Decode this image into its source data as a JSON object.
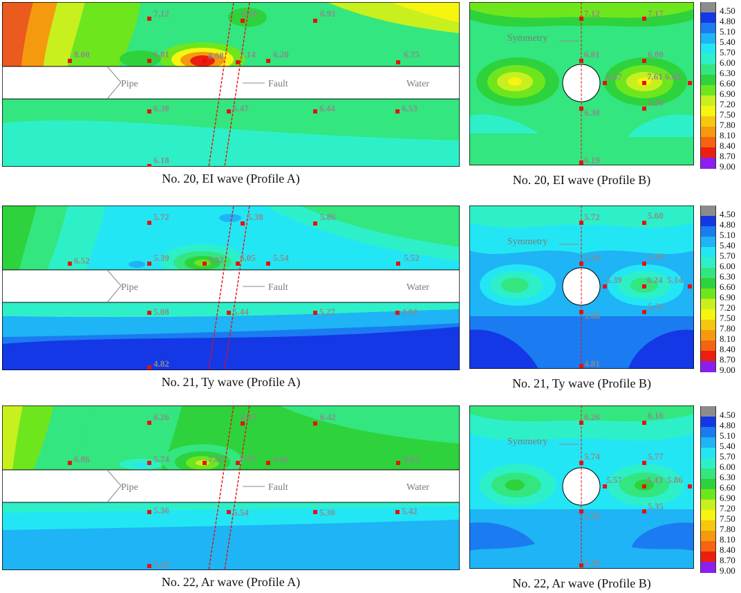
{
  "colorbar": {
    "ticks": [
      "4.50",
      "4.80",
      "5.10",
      "5.40",
      "5.70",
      "6.00",
      "6.30",
      "6.60",
      "6.90",
      "7.20",
      "7.50",
      "7.80",
      "8.10",
      "8.40",
      "8.70",
      "9.00"
    ],
    "colors": [
      "#8c8c8c",
      "#1438e6",
      "#1a7cf0",
      "#1eb4f5",
      "#23e6f5",
      "#2ef0c8",
      "#33e67f",
      "#2ed23c",
      "#6ee61e",
      "#c8f01e",
      "#f5f50f",
      "#f5c80f",
      "#f59a0f",
      "#f5640f",
      "#eb1e0f",
      "#8c1ef0"
    ]
  },
  "annotations": {
    "pipe": "Pipe",
    "fault": "Fault",
    "water": "Water",
    "symmetry": "Symmetry"
  },
  "panels": [
    {
      "caption": "No. 20, EI wave (Profile A)",
      "labels": [
        "7.12",
        "6.10",
        "6.91",
        "8.00",
        "6.81",
        "8.68",
        "7.14",
        "6.20",
        "6.75",
        "6.38",
        "6.47",
        "6.44",
        "6.53",
        "6.18"
      ]
    },
    {
      "caption": "No. 20, EI wave (Profile B)",
      "labels": [
        "7.12",
        "7.17",
        "6.81",
        "6.80",
        "6.67",
        "7.61",
        "6.40",
        "6.38",
        "6.30",
        "6.19"
      ]
    },
    {
      "caption": "No. 21, Ty wave (Profile A)",
      "labels": [
        "5.72",
        "5.38",
        "5.86",
        "6.52",
        "5.39",
        "7.02",
        "6.05",
        "5.54",
        "5.52",
        "5.08",
        "5.44",
        "5.27",
        "4.94",
        "4.82"
      ]
    },
    {
      "caption": "No. 21, Ty wave (Profile B)",
      "labels": [
        "5.72",
        "5.60",
        "5.39",
        "5.38",
        "5.39",
        "6.24",
        "5.14",
        "5.08",
        "5.21",
        "4.81"
      ]
    },
    {
      "caption": "No. 22, Ar wave (Profile A)",
      "labels": [
        "6.26",
        "6.15",
        "6.42",
        "6.86",
        "5.74",
        "7.45",
        "6.43",
        "6.16",
        "6.03",
        "5.36",
        "5.54",
        "5.30",
        "5.42",
        "5.29"
      ]
    },
    {
      "caption": "No. 22, Ar wave (Profile B)",
      "labels": [
        "6.26",
        "6.16",
        "5.74",
        "5.77",
        "5.57",
        "6.43",
        "5.86",
        "5.36",
        "5.35",
        "5.29"
      ]
    }
  ]
}
